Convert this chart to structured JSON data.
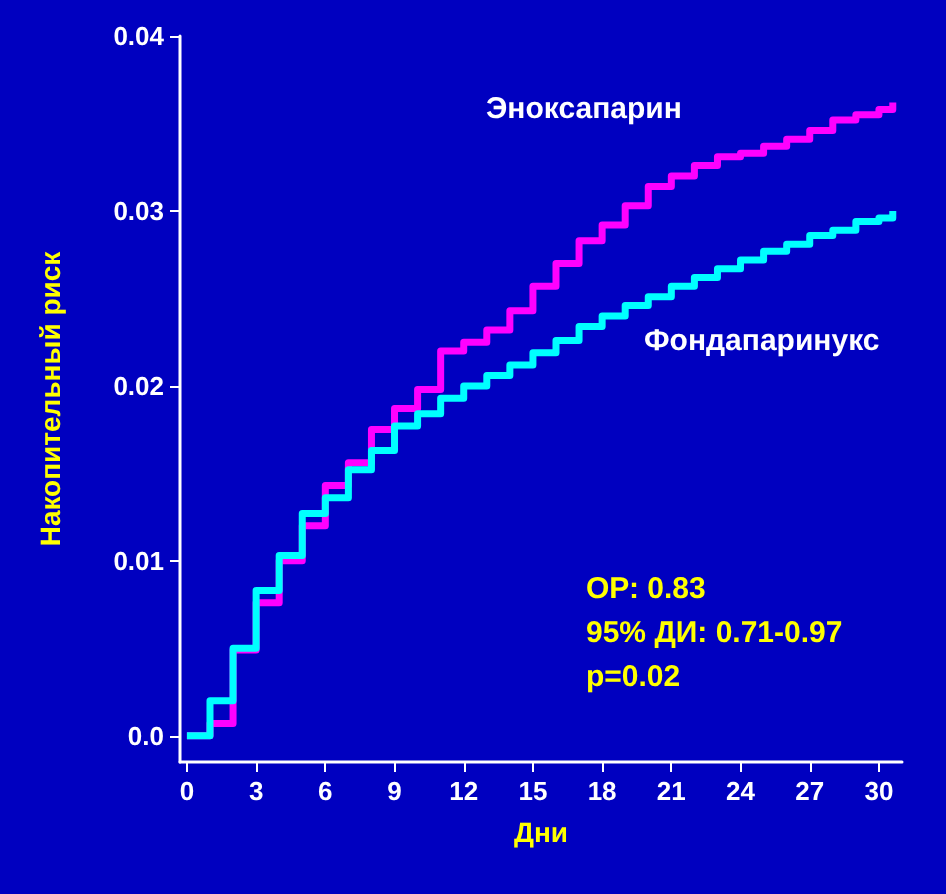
{
  "chart_data": {
    "type": "step",
    "xlabel": "Дни",
    "ylabel": "Накопительный риск",
    "annotations": [
      "ОР: 0.83",
      "95% ДИ: 0.71-0.97",
      "p=0.02"
    ],
    "x": [
      0,
      1,
      2,
      3,
      4,
      5,
      6,
      7,
      8,
      9,
      10,
      11,
      12,
      13,
      14,
      15,
      16,
      17,
      18,
      19,
      20,
      21,
      22,
      23,
      24,
      25,
      26,
      27,
      28,
      29,
      30,
      30.6
    ],
    "series": [
      {
        "name": "Эноксапарин",
        "color": "#ff00ff",
        "values": [
          0,
          0.0007,
          0.0049,
          0.0076,
          0.01,
          0.012,
          0.0143,
          0.0156,
          0.0175,
          0.0187,
          0.0198,
          0.022,
          0.0225,
          0.0232,
          0.0243,
          0.0257,
          0.027,
          0.0283,
          0.0292,
          0.0303,
          0.0314,
          0.032,
          0.0326,
          0.0331,
          0.0333,
          0.0337,
          0.0341,
          0.0346,
          0.0352,
          0.0355,
          0.0358,
          0.0362
        ]
      },
      {
        "name": "Фондапаринукс",
        "color": "#00ffff",
        "values": [
          0,
          0.002,
          0.005,
          0.0083,
          0.0103,
          0.0127,
          0.0136,
          0.0152,
          0.0163,
          0.0177,
          0.0184,
          0.0193,
          0.02,
          0.0206,
          0.0212,
          0.0219,
          0.0226,
          0.0234,
          0.024,
          0.0246,
          0.0251,
          0.0257,
          0.0262,
          0.0267,
          0.0272,
          0.0277,
          0.0281,
          0.0286,
          0.0289,
          0.0294,
          0.0296,
          0.03
        ]
      }
    ],
    "xlim": [
      -0.3,
      31
    ],
    "ylim": [
      -0.0015,
      0.04
    ],
    "xticks": [
      0,
      3,
      6,
      9,
      12,
      15,
      18,
      21,
      24,
      27,
      30
    ],
    "yticks": [
      {
        "value": 0,
        "label": "0.0"
      },
      0.01,
      0.02,
      0.03,
      0.04
    ],
    "grid": false,
    "legend": false,
    "marker": "none",
    "line_style": "solid"
  }
}
